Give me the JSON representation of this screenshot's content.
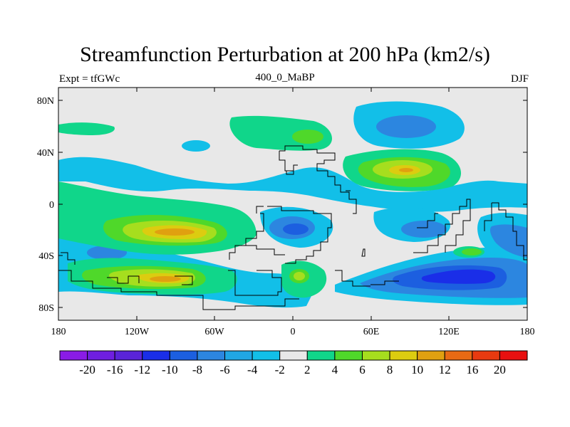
{
  "title": "Streamfunction Perturbation at 200 hPa (km2/s)",
  "subtitle_left": "Expt = tfGWc",
  "subtitle_center": "400_0_MaBP",
  "subtitle_right": "DJF",
  "map": {
    "lat_ticks": [
      "80N",
      "40N",
      "0",
      "40S",
      "80S"
    ],
    "lon_ticks": [
      "180",
      "120W",
      "60W",
      "0",
      "60E",
      "120E",
      "180"
    ]
  },
  "colorbar": {
    "labels": [
      "-20",
      "-16",
      "-12",
      "-10",
      "-8",
      "-6",
      "-4",
      "-2",
      "2",
      "4",
      "6",
      "8",
      "10",
      "12",
      "16",
      "20"
    ],
    "colors": [
      "#8a1be6",
      "#6f1fe0",
      "#5a24d8",
      "#1a2ee8",
      "#1c5fe0",
      "#2c86e0",
      "#20a6e4",
      "#12bfe8",
      "#e8e8e8",
      "#10d68a",
      "#4fd82a",
      "#a6de1e",
      "#dccc10",
      "#e0a010",
      "#e86a14",
      "#e83a10",
      "#e81010"
    ]
  }
}
